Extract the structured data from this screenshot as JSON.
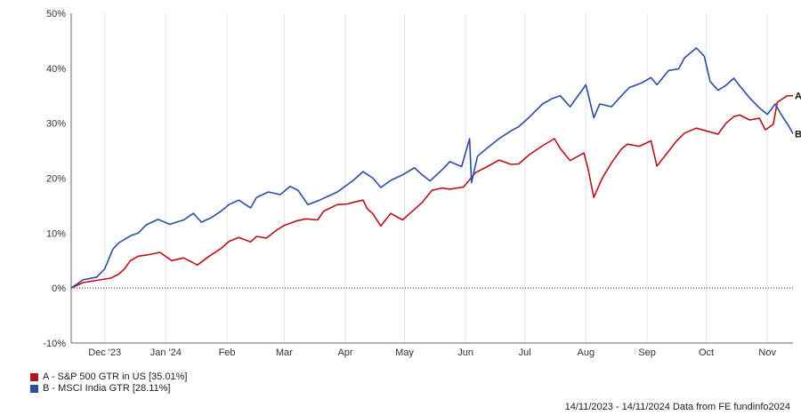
{
  "chart_data": {
    "type": "line",
    "title": "",
    "xlabel": "",
    "ylabel": "",
    "ylim": [
      -10,
      50
    ],
    "y_ticks": [
      -10,
      0,
      10,
      20,
      30,
      40,
      50
    ],
    "y_tick_labels": [
      "-10%",
      "0%",
      "10%",
      "20%",
      "30%",
      "40%",
      "50%"
    ],
    "x_range": [
      "2023-11-14",
      "2024-11-14"
    ],
    "x_ticks": [
      {
        "date": "2023-12-01",
        "label": "Dec '23"
      },
      {
        "date": "2024-01-01",
        "label": "Jan '24"
      },
      {
        "date": "2024-02-01",
        "label": "Feb"
      },
      {
        "date": "2024-03-01",
        "label": "Mar"
      },
      {
        "date": "2024-04-01",
        "label": "Apr"
      },
      {
        "date": "2024-05-01",
        "label": "May"
      },
      {
        "date": "2024-06-01",
        "label": "Jun"
      },
      {
        "date": "2024-07-01",
        "label": "Jul"
      },
      {
        "date": "2024-08-01",
        "label": "Aug"
      },
      {
        "date": "2024-09-01",
        "label": "Sep"
      },
      {
        "date": "2024-10-01",
        "label": "Oct"
      },
      {
        "date": "2024-11-01",
        "label": "Nov"
      }
    ],
    "grid": "vertical",
    "zero_line": "dotted",
    "legend_position": "bottom-left",
    "series": [
      {
        "name": "A - S&P 500 GTR in US [35.01%]",
        "end_label": "A",
        "color": "#b5121b",
        "points": [
          [
            "2023-11-14",
            0.0
          ],
          [
            "2023-11-20",
            1.0
          ],
          [
            "2023-11-27",
            1.4
          ],
          [
            "2023-12-04",
            1.8
          ],
          [
            "2023-12-08",
            2.5
          ],
          [
            "2023-12-11",
            3.5
          ],
          [
            "2023-12-14",
            5.0
          ],
          [
            "2023-12-18",
            5.8
          ],
          [
            "2023-12-22",
            6.0
          ],
          [
            "2023-12-29",
            6.5
          ],
          [
            "2024-01-04",
            5.0
          ],
          [
            "2024-01-10",
            5.5
          ],
          [
            "2024-01-17",
            4.2
          ],
          [
            "2024-01-23",
            5.8
          ],
          [
            "2024-01-29",
            7.2
          ],
          [
            "2024-02-02",
            8.5
          ],
          [
            "2024-02-07",
            9.2
          ],
          [
            "2024-02-13",
            8.4
          ],
          [
            "2024-02-16",
            9.4
          ],
          [
            "2024-02-21",
            9.1
          ],
          [
            "2024-02-26",
            10.5
          ],
          [
            "2024-03-01",
            11.4
          ],
          [
            "2024-03-07",
            12.2
          ],
          [
            "2024-03-12",
            12.6
          ],
          [
            "2024-03-18",
            12.4
          ],
          [
            "2024-03-21",
            14.0
          ],
          [
            "2024-03-28",
            15.2
          ],
          [
            "2024-04-02",
            15.3
          ],
          [
            "2024-04-05",
            15.6
          ],
          [
            "2024-04-10",
            16.0
          ],
          [
            "2024-04-12",
            14.5
          ],
          [
            "2024-04-15",
            13.5
          ],
          [
            "2024-04-19",
            11.3
          ],
          [
            "2024-04-24",
            13.6
          ],
          [
            "2024-04-30",
            12.4
          ],
          [
            "2024-05-06",
            14.3
          ],
          [
            "2024-05-10",
            15.6
          ],
          [
            "2024-05-15",
            17.8
          ],
          [
            "2024-05-20",
            18.2
          ],
          [
            "2024-05-24",
            18.0
          ],
          [
            "2024-05-31",
            18.4
          ],
          [
            "2024-06-06",
            21.0
          ],
          [
            "2024-06-12",
            22.1
          ],
          [
            "2024-06-18",
            23.3
          ],
          [
            "2024-06-24",
            22.5
          ],
          [
            "2024-06-28",
            22.6
          ],
          [
            "2024-07-03",
            24.2
          ],
          [
            "2024-07-10",
            25.9
          ],
          [
            "2024-07-16",
            27.2
          ],
          [
            "2024-07-19",
            25.4
          ],
          [
            "2024-07-24",
            23.2
          ],
          [
            "2024-07-31",
            24.6
          ],
          [
            "2024-08-02",
            21.8
          ],
          [
            "2024-08-05",
            16.5
          ],
          [
            "2024-08-09",
            19.8
          ],
          [
            "2024-08-14",
            22.8
          ],
          [
            "2024-08-19",
            25.3
          ],
          [
            "2024-08-22",
            26.2
          ],
          [
            "2024-08-28",
            25.8
          ],
          [
            "2024-09-03",
            26.8
          ],
          [
            "2024-09-06",
            22.2
          ],
          [
            "2024-09-11",
            24.5
          ],
          [
            "2024-09-16",
            26.8
          ],
          [
            "2024-09-20",
            28.2
          ],
          [
            "2024-09-26",
            29.1
          ],
          [
            "2024-10-01",
            28.6
          ],
          [
            "2024-10-07",
            28.0
          ],
          [
            "2024-10-11",
            30.0
          ],
          [
            "2024-10-15",
            31.2
          ],
          [
            "2024-10-18",
            31.5
          ],
          [
            "2024-10-23",
            30.6
          ],
          [
            "2024-10-28",
            30.9
          ],
          [
            "2024-10-31",
            28.8
          ],
          [
            "2024-11-04",
            29.8
          ],
          [
            "2024-11-06",
            33.8
          ],
          [
            "2024-11-11",
            35.0
          ],
          [
            "2024-11-14",
            35.01
          ]
        ]
      },
      {
        "name": "B - MSCI India GTR [28.11%]",
        "end_label": "B",
        "color": "#2a4d9c",
        "points": [
          [
            "2023-11-14",
            0.0
          ],
          [
            "2023-11-20",
            1.5
          ],
          [
            "2023-11-27",
            2.0
          ],
          [
            "2023-12-01",
            3.5
          ],
          [
            "2023-12-05",
            7.0
          ],
          [
            "2023-12-08",
            8.2
          ],
          [
            "2023-12-14",
            9.5
          ],
          [
            "2023-12-18",
            10.0
          ],
          [
            "2023-12-22",
            11.5
          ],
          [
            "2023-12-28",
            12.5
          ],
          [
            "2024-01-03",
            11.6
          ],
          [
            "2024-01-10",
            12.4
          ],
          [
            "2024-01-15",
            13.6
          ],
          [
            "2024-01-19",
            12.0
          ],
          [
            "2024-01-24",
            12.8
          ],
          [
            "2024-01-29",
            14.0
          ],
          [
            "2024-02-02",
            15.2
          ],
          [
            "2024-02-07",
            16.0
          ],
          [
            "2024-02-13",
            14.6
          ],
          [
            "2024-02-16",
            16.5
          ],
          [
            "2024-02-22",
            17.5
          ],
          [
            "2024-02-28",
            17.0
          ],
          [
            "2024-03-04",
            18.5
          ],
          [
            "2024-03-08",
            17.8
          ],
          [
            "2024-03-13",
            15.2
          ],
          [
            "2024-03-19",
            16.0
          ],
          [
            "2024-03-28",
            17.5
          ],
          [
            "2024-04-05",
            19.6
          ],
          [
            "2024-04-10",
            21.2
          ],
          [
            "2024-04-15",
            20.0
          ],
          [
            "2024-04-19",
            18.3
          ],
          [
            "2024-04-24",
            19.6
          ],
          [
            "2024-04-30",
            20.6
          ],
          [
            "2024-05-06",
            21.9
          ],
          [
            "2024-05-10",
            20.6
          ],
          [
            "2024-05-14",
            19.5
          ],
          [
            "2024-05-20",
            21.5
          ],
          [
            "2024-05-24",
            23.0
          ],
          [
            "2024-05-30",
            22.1
          ],
          [
            "2024-06-03",
            27.2
          ],
          [
            "2024-06-04",
            19.2
          ],
          [
            "2024-06-07",
            24.0
          ],
          [
            "2024-06-12",
            25.5
          ],
          [
            "2024-06-18",
            27.2
          ],
          [
            "2024-06-24",
            28.6
          ],
          [
            "2024-06-28",
            29.4
          ],
          [
            "2024-07-03",
            31.0
          ],
          [
            "2024-07-10",
            33.5
          ],
          [
            "2024-07-15",
            34.5
          ],
          [
            "2024-07-19",
            35.0
          ],
          [
            "2024-07-24",
            33.0
          ],
          [
            "2024-07-31",
            36.5
          ],
          [
            "2024-08-01",
            37.0
          ],
          [
            "2024-08-05",
            31.0
          ],
          [
            "2024-08-08",
            33.5
          ],
          [
            "2024-08-14",
            33.0
          ],
          [
            "2024-08-19",
            35.0
          ],
          [
            "2024-08-23",
            36.5
          ],
          [
            "2024-08-29",
            37.3
          ],
          [
            "2024-09-03",
            38.3
          ],
          [
            "2024-09-06",
            37.0
          ],
          [
            "2024-09-12",
            39.6
          ],
          [
            "2024-09-17",
            39.9
          ],
          [
            "2024-09-20",
            41.9
          ],
          [
            "2024-09-26",
            43.7
          ],
          [
            "2024-09-30",
            42.2
          ],
          [
            "2024-10-03",
            37.6
          ],
          [
            "2024-10-07",
            36.0
          ],
          [
            "2024-10-11",
            36.9
          ],
          [
            "2024-10-15",
            38.2
          ],
          [
            "2024-10-18",
            36.8
          ],
          [
            "2024-10-23",
            34.6
          ],
          [
            "2024-10-28",
            32.8
          ],
          [
            "2024-11-01",
            31.6
          ],
          [
            "2024-11-05",
            33.5
          ],
          [
            "2024-11-08",
            31.6
          ],
          [
            "2024-11-12",
            29.4
          ],
          [
            "2024-11-14",
            28.11
          ]
        ]
      }
    ],
    "footer": "14/11/2023 - 14/11/2024 Data from FE fundinfo2024"
  }
}
